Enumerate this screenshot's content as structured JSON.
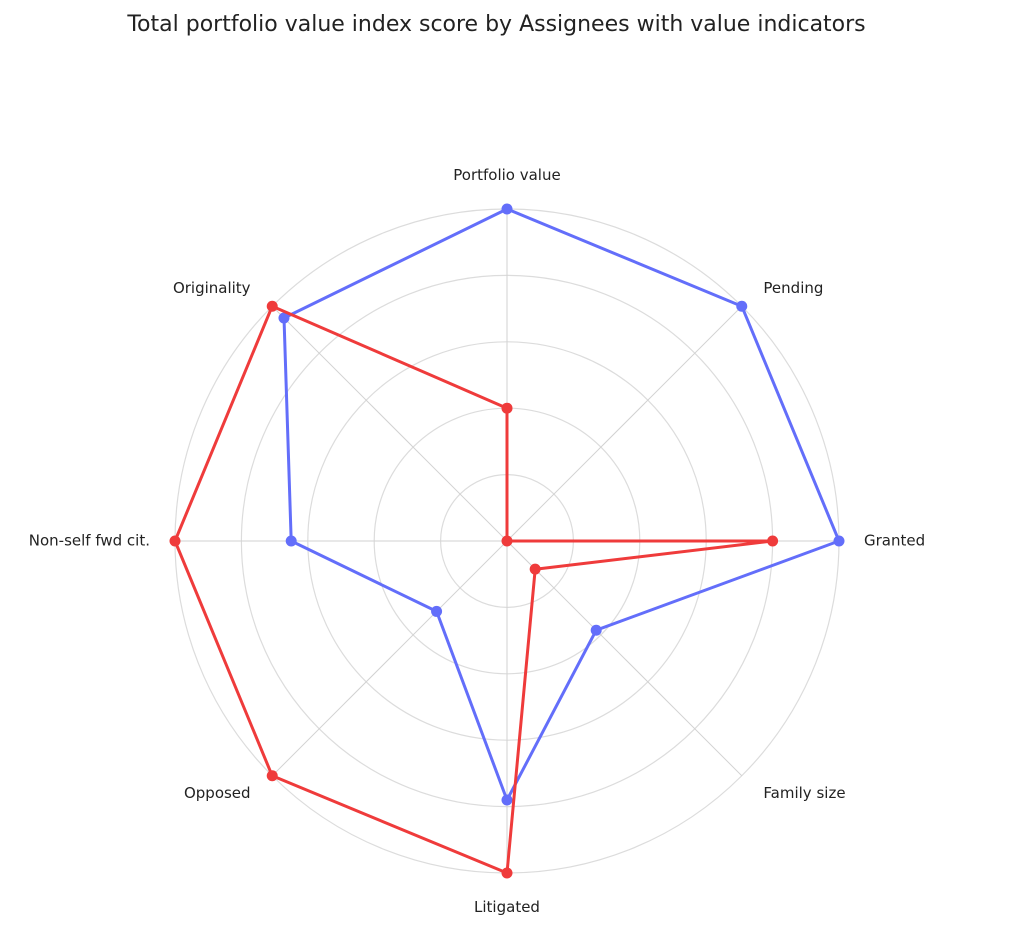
{
  "chart_data": {
    "type": "radar",
    "title": "Total portfolio value index score by Assignees with value indicators",
    "categories": [
      "Portfolio value",
      "Pending",
      "Granted",
      "Family size",
      "Litigated",
      "Opposed",
      "Non-self fwd cit.",
      "Originality"
    ],
    "range": [
      0,
      5
    ],
    "grid": true,
    "legend": "none",
    "series": [
      {
        "color": "#636efa",
        "values": [
          5,
          5,
          5,
          1.9,
          3.9,
          1.5,
          3.25,
          4.75
        ]
      },
      {
        "color": "#ef3b3b",
        "values": [
          2,
          0,
          4,
          0.6,
          5,
          5,
          5,
          5
        ]
      }
    ]
  }
}
